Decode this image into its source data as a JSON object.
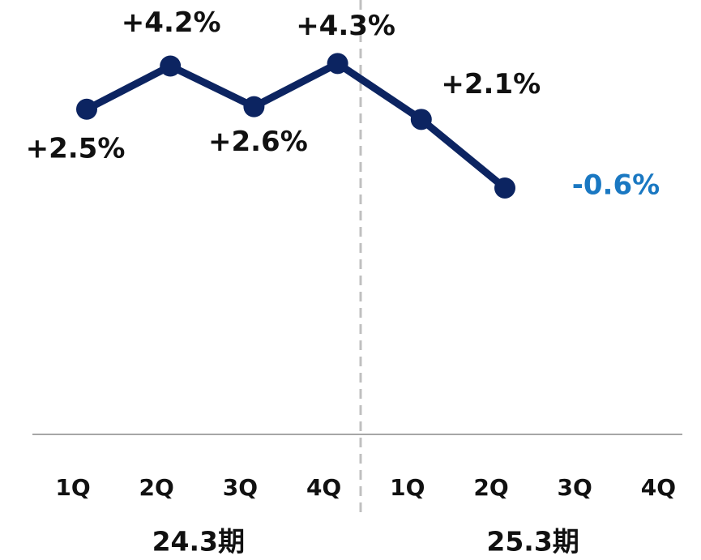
{
  "chart_data": {
    "type": "line",
    "categories": [
      "1Q",
      "2Q",
      "3Q",
      "4Q",
      "1Q",
      "2Q",
      "3Q",
      "4Q"
    ],
    "groups": [
      "24.3期",
      "25.3期"
    ],
    "values": [
      2.5,
      4.2,
      2.6,
      4.3,
      2.1,
      -0.6,
      null,
      null
    ],
    "value_labels": [
      "+2.5%",
      "+4.2%",
      "+2.6%",
      "+4.3%",
      "+2.1%",
      "-0.6%",
      null,
      null
    ],
    "value_label_colors": [
      "#111111",
      "#111111",
      "#111111",
      "#111111",
      "#111111",
      "#1a78c2",
      null,
      null
    ],
    "color": "#0c2461",
    "ylim": [
      -10.3,
      6.8
    ]
  }
}
